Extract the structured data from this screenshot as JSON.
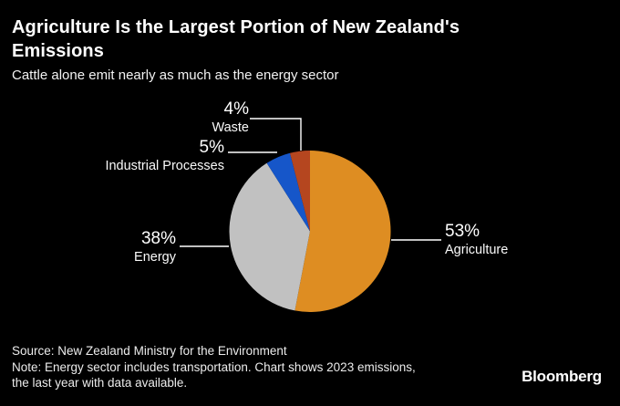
{
  "header": {
    "title": "Agriculture Is the Largest Portion of New Zealand's Emissions",
    "subtitle": "Cattle alone emit nearly as much as the energy sector"
  },
  "chart_data": {
    "type": "pie",
    "title": "Agriculture Is the Largest Portion of New Zealand's Emissions",
    "subtitle": "Cattle alone emit nearly as much as the energy sector",
    "units": "%",
    "start_angle_deg": 0,
    "direction": "clockwise",
    "legend_position": "callout-labels",
    "background_color": "#000000",
    "slices": [
      {
        "label": "Agriculture",
        "value": 53,
        "pct_label": "53%",
        "color": "#DE8D22"
      },
      {
        "label": "Energy",
        "value": 38,
        "pct_label": "38%",
        "color": "#C1C1C1"
      },
      {
        "label": "Industrial Processes",
        "value": 5,
        "pct_label": "5%",
        "color": "#1656C9"
      },
      {
        "label": "Waste",
        "value": 4,
        "pct_label": "4%",
        "color": "#B5461F"
      }
    ]
  },
  "footer": {
    "source": "Source: New Zealand Ministry for the Environment",
    "note_lines": [
      "Note: Energy sector includes transportation. Chart shows 2023 emissions,",
      "the last year with data available."
    ],
    "brand": "Bloomberg"
  }
}
